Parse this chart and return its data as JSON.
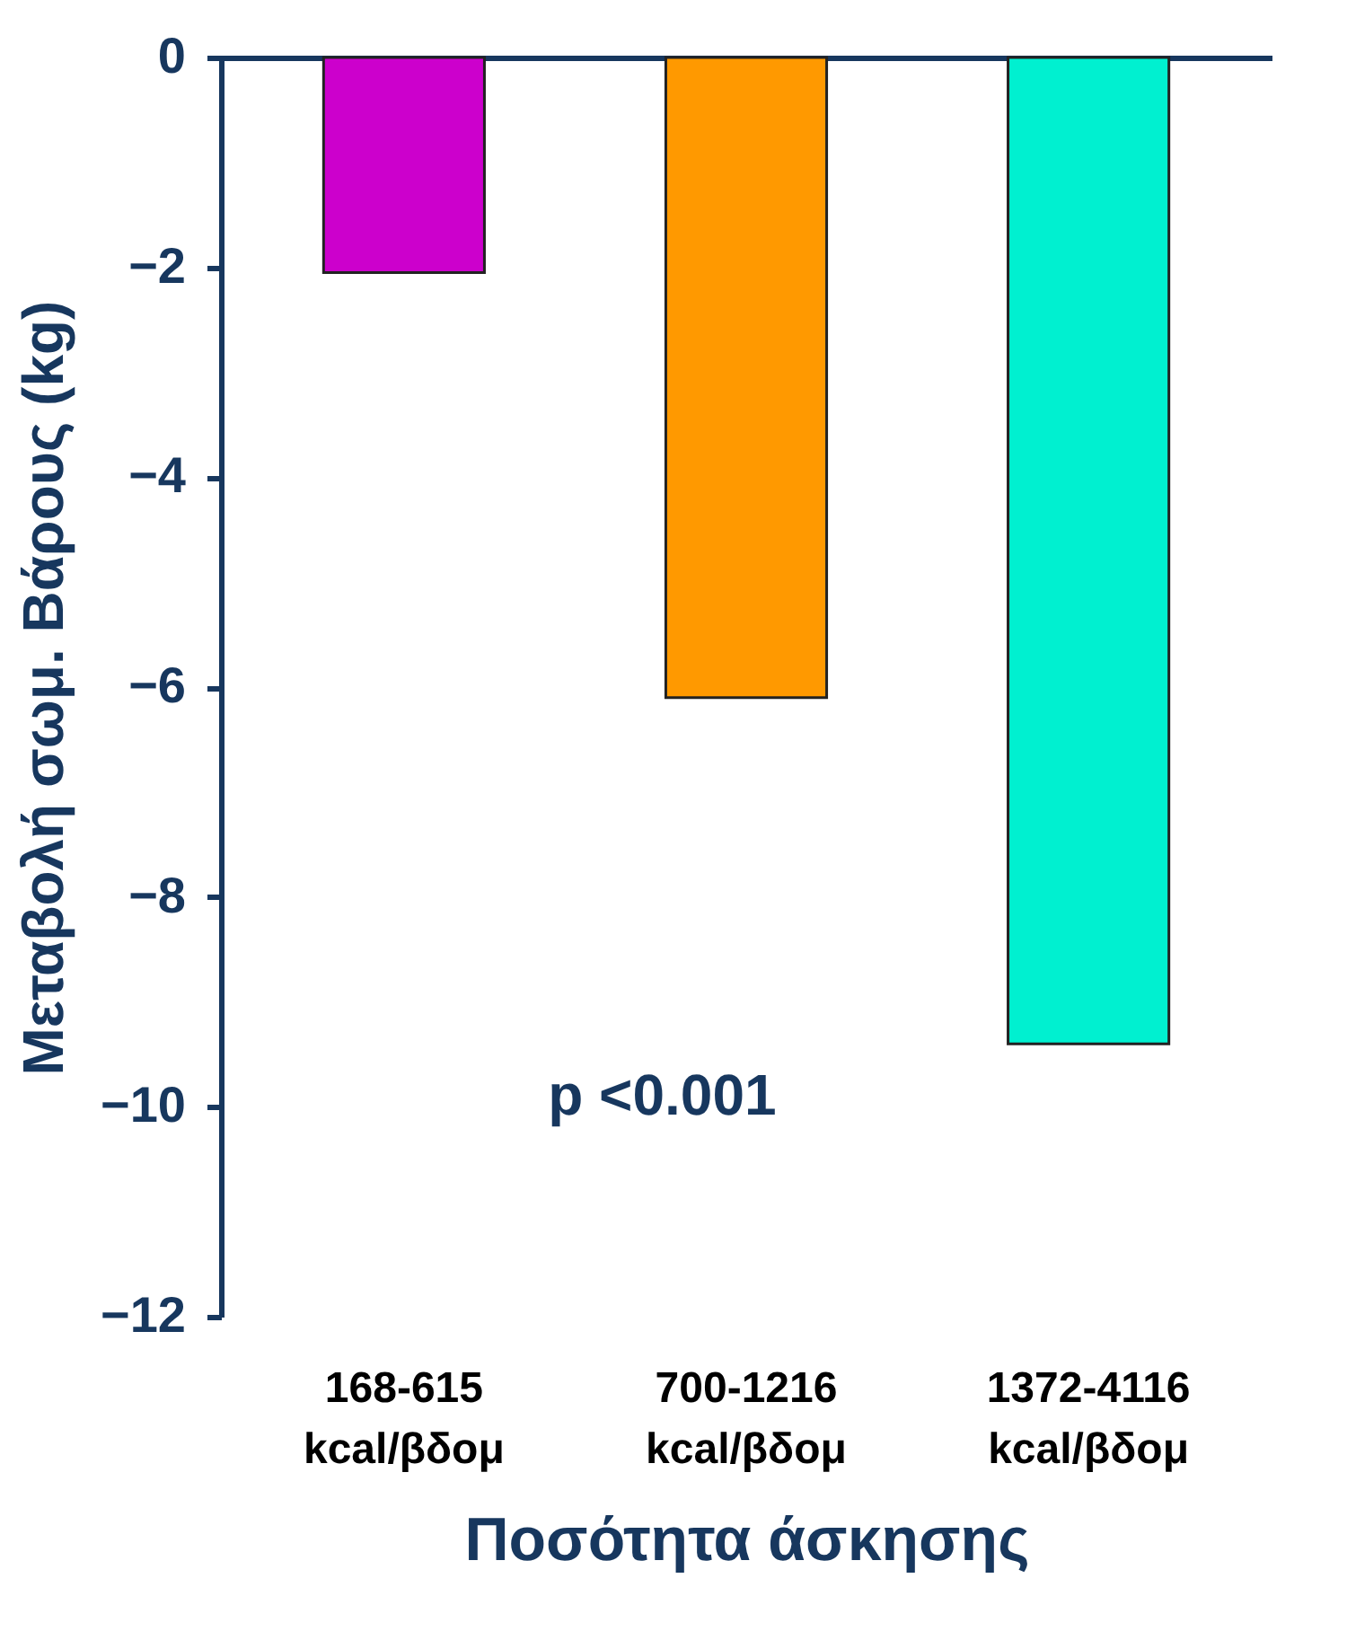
{
  "chart_data": {
    "type": "bar",
    "xlabel": "Ποσότητα άσκησης",
    "ylabel": "Μεταβολή σωμ. Βάρους (kg)",
    "categories": [
      "168-615 kcal/βδομ",
      "700-1216 kcal/βδομ",
      "1372-4116 kcal/βδομ"
    ],
    "values": [
      -2.05,
      -6.1,
      -9.4
    ],
    "colors": [
      "#cc00cc",
      "#ff9900",
      "#00f0d0"
    ],
    "ylim": [
      -12,
      0
    ],
    "yticks": [
      0,
      -2,
      -4,
      -6,
      -8,
      -10,
      -12
    ],
    "grid": false,
    "annotations": [
      "p <0.001"
    ]
  }
}
